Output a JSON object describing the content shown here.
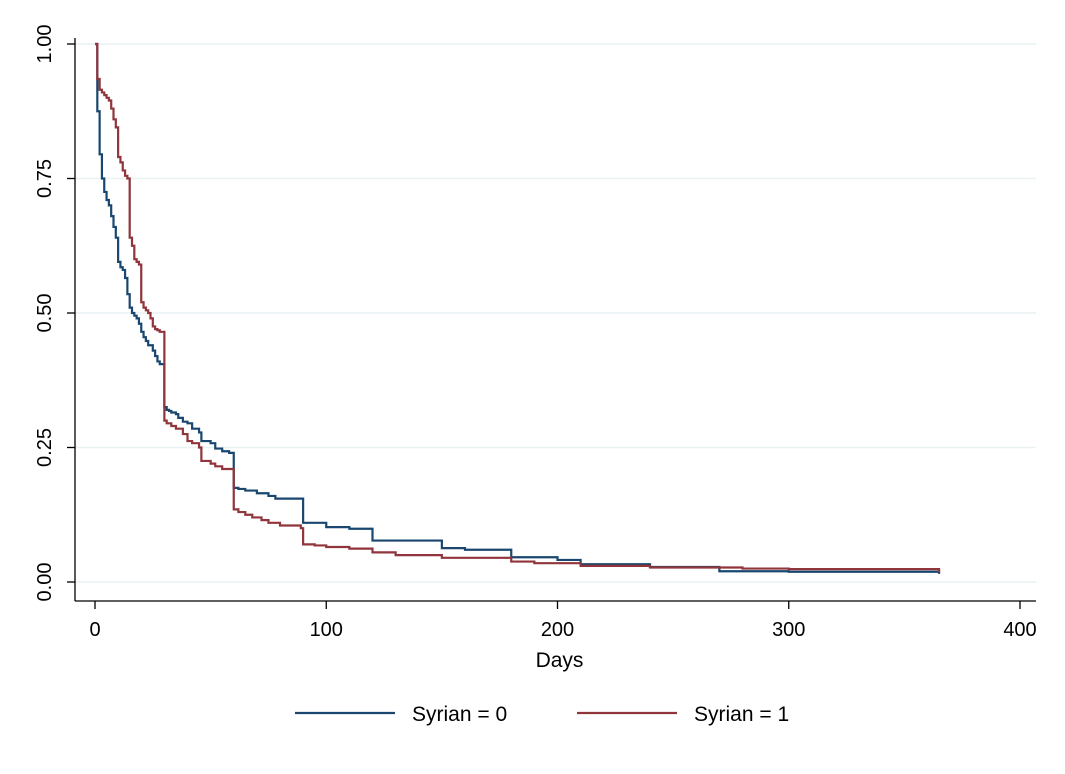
{
  "chart_data": {
    "type": "line",
    "title": "",
    "xlabel": "Days",
    "ylabel": "",
    "xlim": [
      0,
      400
    ],
    "ylim": [
      0,
      1
    ],
    "x_ticks": [
      0,
      100,
      200,
      300,
      400
    ],
    "x_tick_labels": [
      "0",
      "100",
      "200",
      "300",
      "400"
    ],
    "y_ticks": [
      0,
      0.25,
      0.5,
      0.75,
      1
    ],
    "y_tick_labels": [
      "0.00",
      "0.25",
      "0.50",
      "0.75",
      "1.00"
    ],
    "grid": "horizontal",
    "legend_position": "bottom",
    "step": true,
    "series": [
      {
        "name": "Syrian = 0",
        "color": "#1a476f",
        "points": [
          [
            0,
            1.0
          ],
          [
            1,
            0.875
          ],
          [
            2,
            0.795
          ],
          [
            3,
            0.75
          ],
          [
            4,
            0.725
          ],
          [
            5,
            0.71
          ],
          [
            6,
            0.7
          ],
          [
            7,
            0.68
          ],
          [
            8,
            0.66
          ],
          [
            9,
            0.64
          ],
          [
            10,
            0.595
          ],
          [
            11,
            0.585
          ],
          [
            12,
            0.58
          ],
          [
            13,
            0.565
          ],
          [
            14,
            0.535
          ],
          [
            15,
            0.51
          ],
          [
            16,
            0.5
          ],
          [
            17,
            0.495
          ],
          [
            18,
            0.49
          ],
          [
            19,
            0.48
          ],
          [
            20,
            0.465
          ],
          [
            21,
            0.455
          ],
          [
            22,
            0.448
          ],
          [
            23,
            0.44
          ],
          [
            25,
            0.43
          ],
          [
            26,
            0.42
          ],
          [
            27,
            0.41
          ],
          [
            28,
            0.405
          ],
          [
            30,
            0.325
          ],
          [
            31,
            0.32
          ],
          [
            32,
            0.318
          ],
          [
            33,
            0.315
          ],
          [
            35,
            0.312
          ],
          [
            36,
            0.305
          ],
          [
            38,
            0.298
          ],
          [
            40,
            0.295
          ],
          [
            42,
            0.285
          ],
          [
            45,
            0.278
          ],
          [
            46,
            0.262
          ],
          [
            50,
            0.258
          ],
          [
            52,
            0.248
          ],
          [
            55,
            0.243
          ],
          [
            58,
            0.24
          ],
          [
            60,
            0.175
          ],
          [
            62,
            0.173
          ],
          [
            65,
            0.17
          ],
          [
            70,
            0.165
          ],
          [
            75,
            0.16
          ],
          [
            78,
            0.155
          ],
          [
            90,
            0.11
          ],
          [
            100,
            0.102
          ],
          [
            110,
            0.099
          ],
          [
            120,
            0.077
          ],
          [
            150,
            0.063
          ],
          [
            160,
            0.06
          ],
          [
            180,
            0.046
          ],
          [
            200,
            0.041
          ],
          [
            210,
            0.033
          ],
          [
            240,
            0.028
          ],
          [
            270,
            0.02
          ],
          [
            300,
            0.019
          ],
          [
            365,
            0.015
          ]
        ]
      },
      {
        "name": "Syrian = 1",
        "color": "#90353b",
        "points": [
          [
            0,
            1.0
          ],
          [
            1,
            0.935
          ],
          [
            2,
            0.915
          ],
          [
            3,
            0.91
          ],
          [
            4,
            0.905
          ],
          [
            5,
            0.9
          ],
          [
            6,
            0.895
          ],
          [
            7,
            0.88
          ],
          [
            8,
            0.86
          ],
          [
            9,
            0.845
          ],
          [
            10,
            0.79
          ],
          [
            11,
            0.78
          ],
          [
            12,
            0.765
          ],
          [
            13,
            0.755
          ],
          [
            14,
            0.75
          ],
          [
            15,
            0.64
          ],
          [
            16,
            0.625
          ],
          [
            17,
            0.6
          ],
          [
            18,
            0.595
          ],
          [
            19,
            0.59
          ],
          [
            20,
            0.52
          ],
          [
            21,
            0.51
          ],
          [
            22,
            0.505
          ],
          [
            23,
            0.5
          ],
          [
            24,
            0.49
          ],
          [
            25,
            0.475
          ],
          [
            26,
            0.47
          ],
          [
            27,
            0.468
          ],
          [
            28,
            0.465
          ],
          [
            30,
            0.3
          ],
          [
            31,
            0.295
          ],
          [
            33,
            0.29
          ],
          [
            35,
            0.285
          ],
          [
            38,
            0.275
          ],
          [
            40,
            0.262
          ],
          [
            42,
            0.258
          ],
          [
            45,
            0.25
          ],
          [
            46,
            0.225
          ],
          [
            50,
            0.22
          ],
          [
            52,
            0.215
          ],
          [
            55,
            0.21
          ],
          [
            60,
            0.135
          ],
          [
            62,
            0.13
          ],
          [
            65,
            0.125
          ],
          [
            68,
            0.12
          ],
          [
            72,
            0.115
          ],
          [
            75,
            0.11
          ],
          [
            80,
            0.105
          ],
          [
            89,
            0.1
          ],
          [
            90,
            0.07
          ],
          [
            95,
            0.068
          ],
          [
            100,
            0.065
          ],
          [
            110,
            0.062
          ],
          [
            120,
            0.055
          ],
          [
            130,
            0.05
          ],
          [
            150,
            0.045
          ],
          [
            180,
            0.038
          ],
          [
            190,
            0.035
          ],
          [
            210,
            0.03
          ],
          [
            240,
            0.027
          ],
          [
            280,
            0.025
          ],
          [
            300,
            0.024
          ],
          [
            365,
            0.018
          ]
        ]
      }
    ]
  }
}
